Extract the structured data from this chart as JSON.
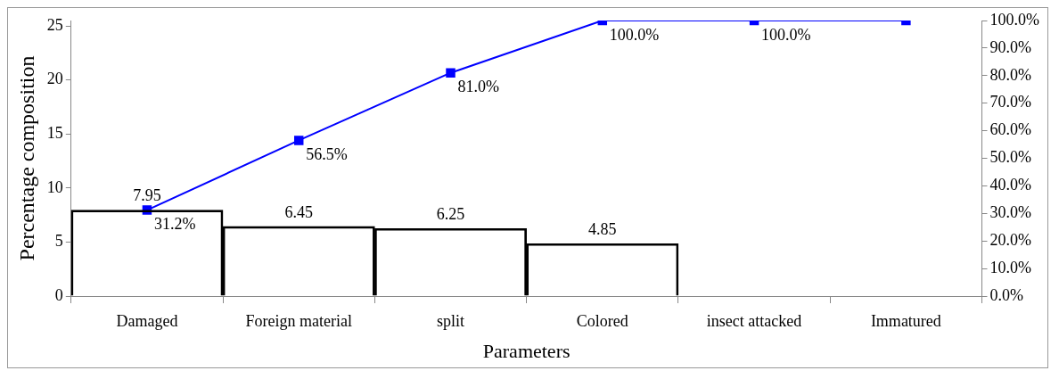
{
  "chart_data": {
    "type": "bar",
    "xlabel": "Parameters",
    "ylabel": "Percentage composition",
    "categories": [
      "Damaged",
      "Foreign material",
      "split",
      "Colored",
      "insect attacked",
      "Immatured"
    ],
    "series": [
      {
        "color": "#000000",
        "values": [
          7.95,
          6.45,
          6.25,
          4.85,
          0,
          0
        ],
        "value_labels": [
          "7.95",
          "6.45",
          "6.25",
          "4.85",
          null,
          null
        ]
      },
      {
        "type": "line",
        "axis": "y2",
        "color": "#0000ff",
        "marker": "square",
        "values": [
          31.2,
          56.5,
          81.0,
          100.0,
          100.0,
          100.0
        ],
        "value_labels": [
          "31.2%",
          "56.5%",
          "81.0%",
          "100.0%",
          "100.0%",
          null
        ]
      }
    ],
    "ylim": [
      0,
      25.5
    ],
    "yticks": [
      0,
      5,
      10,
      15,
      20,
      25
    ],
    "y2lim": [
      0,
      100
    ],
    "y2ticks": [
      {
        "value": 0,
        "label": "0.0%"
      },
      {
        "value": 10,
        "label": "10.0%"
      },
      {
        "value": 20,
        "label": "20.0%"
      },
      {
        "value": 30,
        "label": "30.0%"
      },
      {
        "value": 40,
        "label": "40.0%"
      },
      {
        "value": 50,
        "label": "50.0%"
      },
      {
        "value": 60,
        "label": "60.0%"
      },
      {
        "value": 70,
        "label": "70.0%"
      },
      {
        "value": 80,
        "label": "80.0%"
      },
      {
        "value": 90,
        "label": "90.0%"
      },
      {
        "value": 100,
        "label": "100.0%"
      }
    ],
    "grid": false,
    "legend": false
  }
}
